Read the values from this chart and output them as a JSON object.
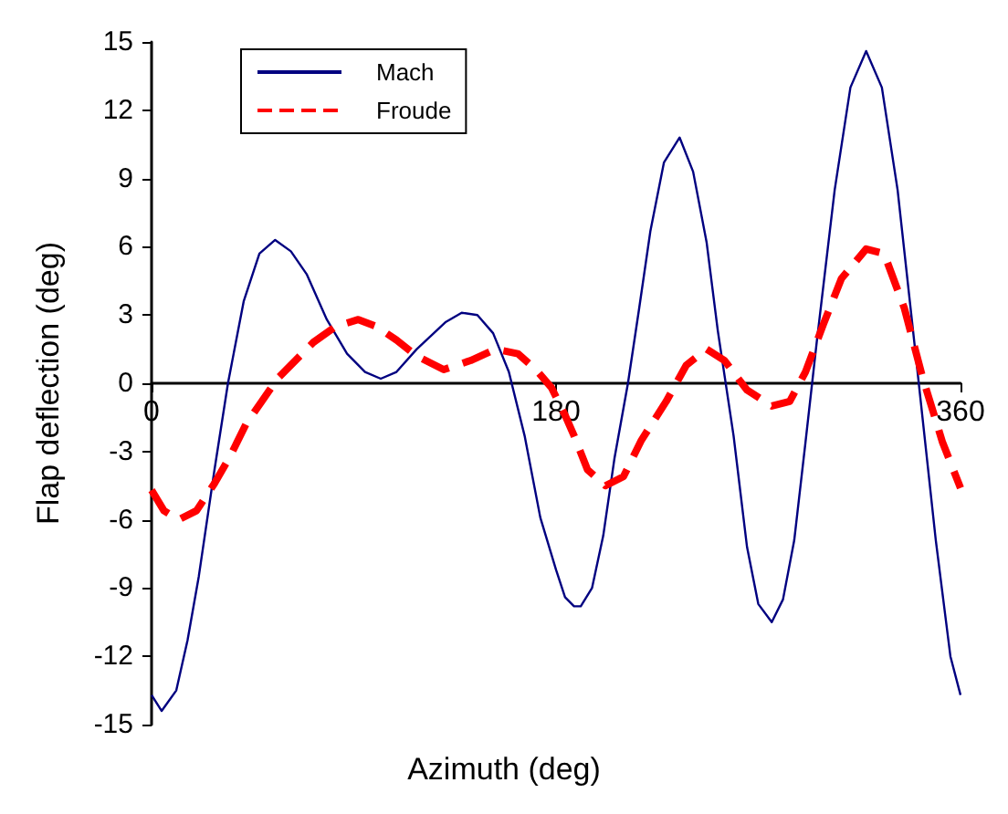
{
  "chart_data": {
    "type": "line",
    "xlabel": "Azimuth (deg)",
    "ylabel": "Flap deflection (deg)",
    "xlim": [
      0,
      360
    ],
    "xticks": [
      0,
      180,
      360
    ],
    "ylim": [
      -15,
      15
    ],
    "yticks": [
      -15,
      -12,
      -9,
      -6,
      -3,
      0,
      3,
      6,
      9,
      12,
      15
    ],
    "grid": false,
    "legend": "top left",
    "marker": "none",
    "series": [
      {
        "name": "Mach",
        "color": "#000080",
        "line_style": "solid",
        "x": [
          0,
          4.5,
          11,
          16,
          21,
          28,
          34,
          41,
          48,
          55,
          62,
          69,
          78,
          87,
          95,
          102,
          109,
          118,
          131,
          138,
          145,
          152,
          159,
          166,
          173,
          180,
          184,
          188,
          191,
          196,
          201,
          206,
          212,
          217,
          222,
          228,
          235,
          241,
          247,
          252,
          259,
          265,
          270,
          276,
          281,
          286,
          291,
          296,
          304,
          311,
          318,
          325,
          332,
          340,
          349,
          355.5,
          360
        ],
        "values": [
          -13.7,
          -14.4,
          -13.5,
          -11.3,
          -8.5,
          -3.8,
          0,
          3.6,
          5.7,
          6.3,
          5.8,
          4.8,
          2.8,
          1.3,
          0.5,
          0.2,
          0.5,
          1.5,
          2.7,
          3.1,
          3.0,
          2.2,
          0.5,
          -2.3,
          -5.9,
          -8.2,
          -9.4,
          -9.8,
          -9.8,
          -9.0,
          -6.7,
          -3.3,
          0,
          3.3,
          6.7,
          9.7,
          10.8,
          9.3,
          6.2,
          2.3,
          -2.3,
          -7.2,
          -9.7,
          -10.5,
          -9.5,
          -6.9,
          -2.6,
          1.8,
          8.5,
          13.0,
          14.6,
          13.0,
          8.5,
          1.3,
          -6.9,
          -12.0,
          -13.7
        ]
      },
      {
        "name": "Froude",
        "color": "#ff0000",
        "line_style": "dashed",
        "x": [
          0,
          5.5,
          12,
          20,
          28,
          35,
          42,
          49,
          56,
          64,
          72,
          82,
          92,
          100,
          109,
          118,
          130,
          142,
          153,
          163,
          171,
          178,
          184,
          188,
          194,
          202,
          210,
          218,
          229,
          238,
          247,
          255,
          265,
          276,
          284,
          291,
          299,
          307,
          318,
          326,
          335,
          343,
          352,
          360
        ],
        "values": [
          -4.7,
          -5.6,
          -6.0,
          -5.6,
          -4.4,
          -3.2,
          -1.8,
          -0.8,
          0.2,
          1.0,
          1.8,
          2.5,
          2.8,
          2.5,
          1.9,
          1.2,
          0.6,
          1.0,
          1.5,
          1.3,
          0.6,
          -0.2,
          -1.4,
          -2.3,
          -3.8,
          -4.5,
          -4.1,
          -2.5,
          -0.8,
          0.8,
          1.5,
          1.0,
          -0.3,
          -1.0,
          -0.8,
          0.5,
          2.6,
          4.6,
          5.9,
          5.7,
          3.3,
          0.3,
          -2.6,
          -4.6
        ]
      }
    ]
  }
}
